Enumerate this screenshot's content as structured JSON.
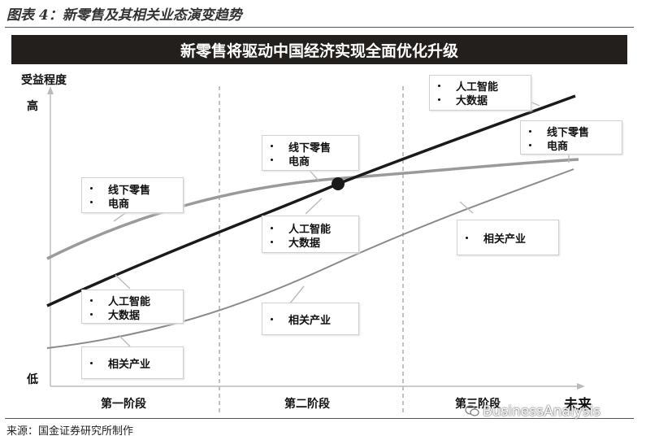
{
  "figure_caption": "图表 4：新零售及其相关业态演变趋势",
  "banner_title": "新零售将驱动中国经济实现全面优化升级",
  "y_axis": {
    "title": "受益程度",
    "high": "高",
    "low": "低"
  },
  "x_axis": {
    "end_label": "未来"
  },
  "stages": [
    "第一阶段",
    "第二阶段",
    "第三阶段"
  ],
  "callouts": {
    "stage1_retail": [
      "线下零售",
      "电商"
    ],
    "stage1_ai": [
      "人工智能",
      "大数据"
    ],
    "stage1_industry": [
      "相关产业"
    ],
    "stage2_retail": [
      "线下零售",
      "电商"
    ],
    "stage2_ai": [
      "人工智能",
      "大数据"
    ],
    "stage2_industry": [
      "相关产业"
    ],
    "stage3_ai": [
      "人工智能",
      "大数据"
    ],
    "stage3_retail": [
      "线下零售",
      "电商"
    ],
    "stage3_industry": [
      "相关产业"
    ]
  },
  "source": "来源：国金证券研究所制作",
  "watermark": "BusinessAnalysis",
  "colors": {
    "banner_bg": "#231f1c",
    "ai_line": "#1a1a1a",
    "retail_line": "#9a9a9a",
    "industry_line": "#8a8a8a"
  }
}
